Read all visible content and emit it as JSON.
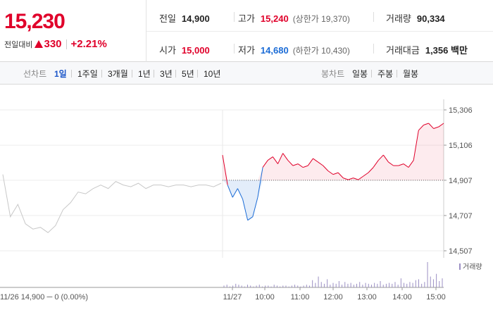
{
  "quote": {
    "current_price": "15,230",
    "change_label": "전일대비",
    "change_amount": "330",
    "change_percent": "+2.21%",
    "prev_close_label": "전일",
    "prev_close": "14,900",
    "open_label": "시가",
    "open": "15,000",
    "high_label": "고가",
    "high": "15,240",
    "upper_limit": "(상한가 19,370)",
    "low_label": "저가",
    "low": "14,680",
    "lower_limit": "(하한가 10,430)",
    "volume_label": "거래량",
    "volume": "90,334",
    "turnover_label": "거래대금",
    "turnover": "1,356 백만"
  },
  "toolbar": {
    "line_chart_label": "선차트",
    "line_periods": [
      "1일",
      "1주일",
      "3개월",
      "1년",
      "3년",
      "5년",
      "10년"
    ],
    "active_period": "1일",
    "candle_chart_label": "봉차트",
    "candle_periods": [
      "일봉",
      "주봉",
      "월봉"
    ]
  },
  "colors": {
    "up": "#e0002a",
    "down": "#1a6bd6",
    "accent": "#1a55c8",
    "prev_day": "#c8c8c8"
  },
  "chart_data": {
    "type": "line",
    "y_ticks": [
      "15,306",
      "15,106",
      "14,907",
      "14,707",
      "14,507"
    ],
    "y_tick_values": [
      15306,
      15106,
      14907,
      14707,
      14507
    ],
    "ylim": [
      14507,
      15306
    ],
    "baseline": 14907,
    "volume_legend": "거래량",
    "prev_day_label": "11/26  14,900 ─ 0 (0.00%)",
    "x_ticks": [
      "11/27",
      "10:00",
      "11:00",
      "12:00",
      "13:00",
      "14:00",
      "15:00"
    ],
    "series": [
      {
        "values": [
          14940,
          14700,
          14770,
          14660,
          14630,
          14640,
          14610,
          14650,
          14740,
          14780,
          14840,
          14830,
          14860,
          14880,
          14860,
          14900,
          14880,
          14870,
          14890,
          14860,
          14880,
          14880,
          14870,
          14880,
          14880,
          14870,
          14880,
          14880,
          14870,
          14890
        ]
      },
      {
        "values": [
          15050,
          14880,
          14810,
          14860,
          14800,
          14680,
          14700,
          14810,
          14980,
          15020,
          15040,
          15000,
          15060,
          15020,
          14990,
          15000,
          14980,
          14990,
          15030,
          15010,
          14990,
          14960,
          14940,
          14950,
          14920,
          14910,
          14920,
          14910,
          14930,
          14950,
          14980,
          15020,
          15050,
          15010,
          14990,
          14990,
          15000,
          14980,
          15020,
          15190,
          15220,
          15230,
          15200,
          15210,
          15230
        ]
      }
    ],
    "volume": [
      2,
      3,
      1,
      2,
      4,
      3,
      2,
      1,
      3,
      2,
      1,
      2,
      3,
      1,
      2,
      2,
      1,
      3,
      2,
      1,
      2,
      2,
      1,
      2,
      3,
      2,
      1,
      2,
      3,
      2,
      8,
      5,
      12,
      6,
      4,
      9,
      3,
      5,
      4,
      7,
      3,
      6,
      4,
      5,
      3,
      4,
      6,
      3,
      5,
      4,
      3,
      5,
      4,
      7,
      3,
      4,
      5,
      4,
      6,
      3,
      10,
      5,
      4,
      6,
      5,
      8,
      9,
      4,
      6,
      28,
      12,
      9,
      15,
      7,
      10
    ]
  }
}
